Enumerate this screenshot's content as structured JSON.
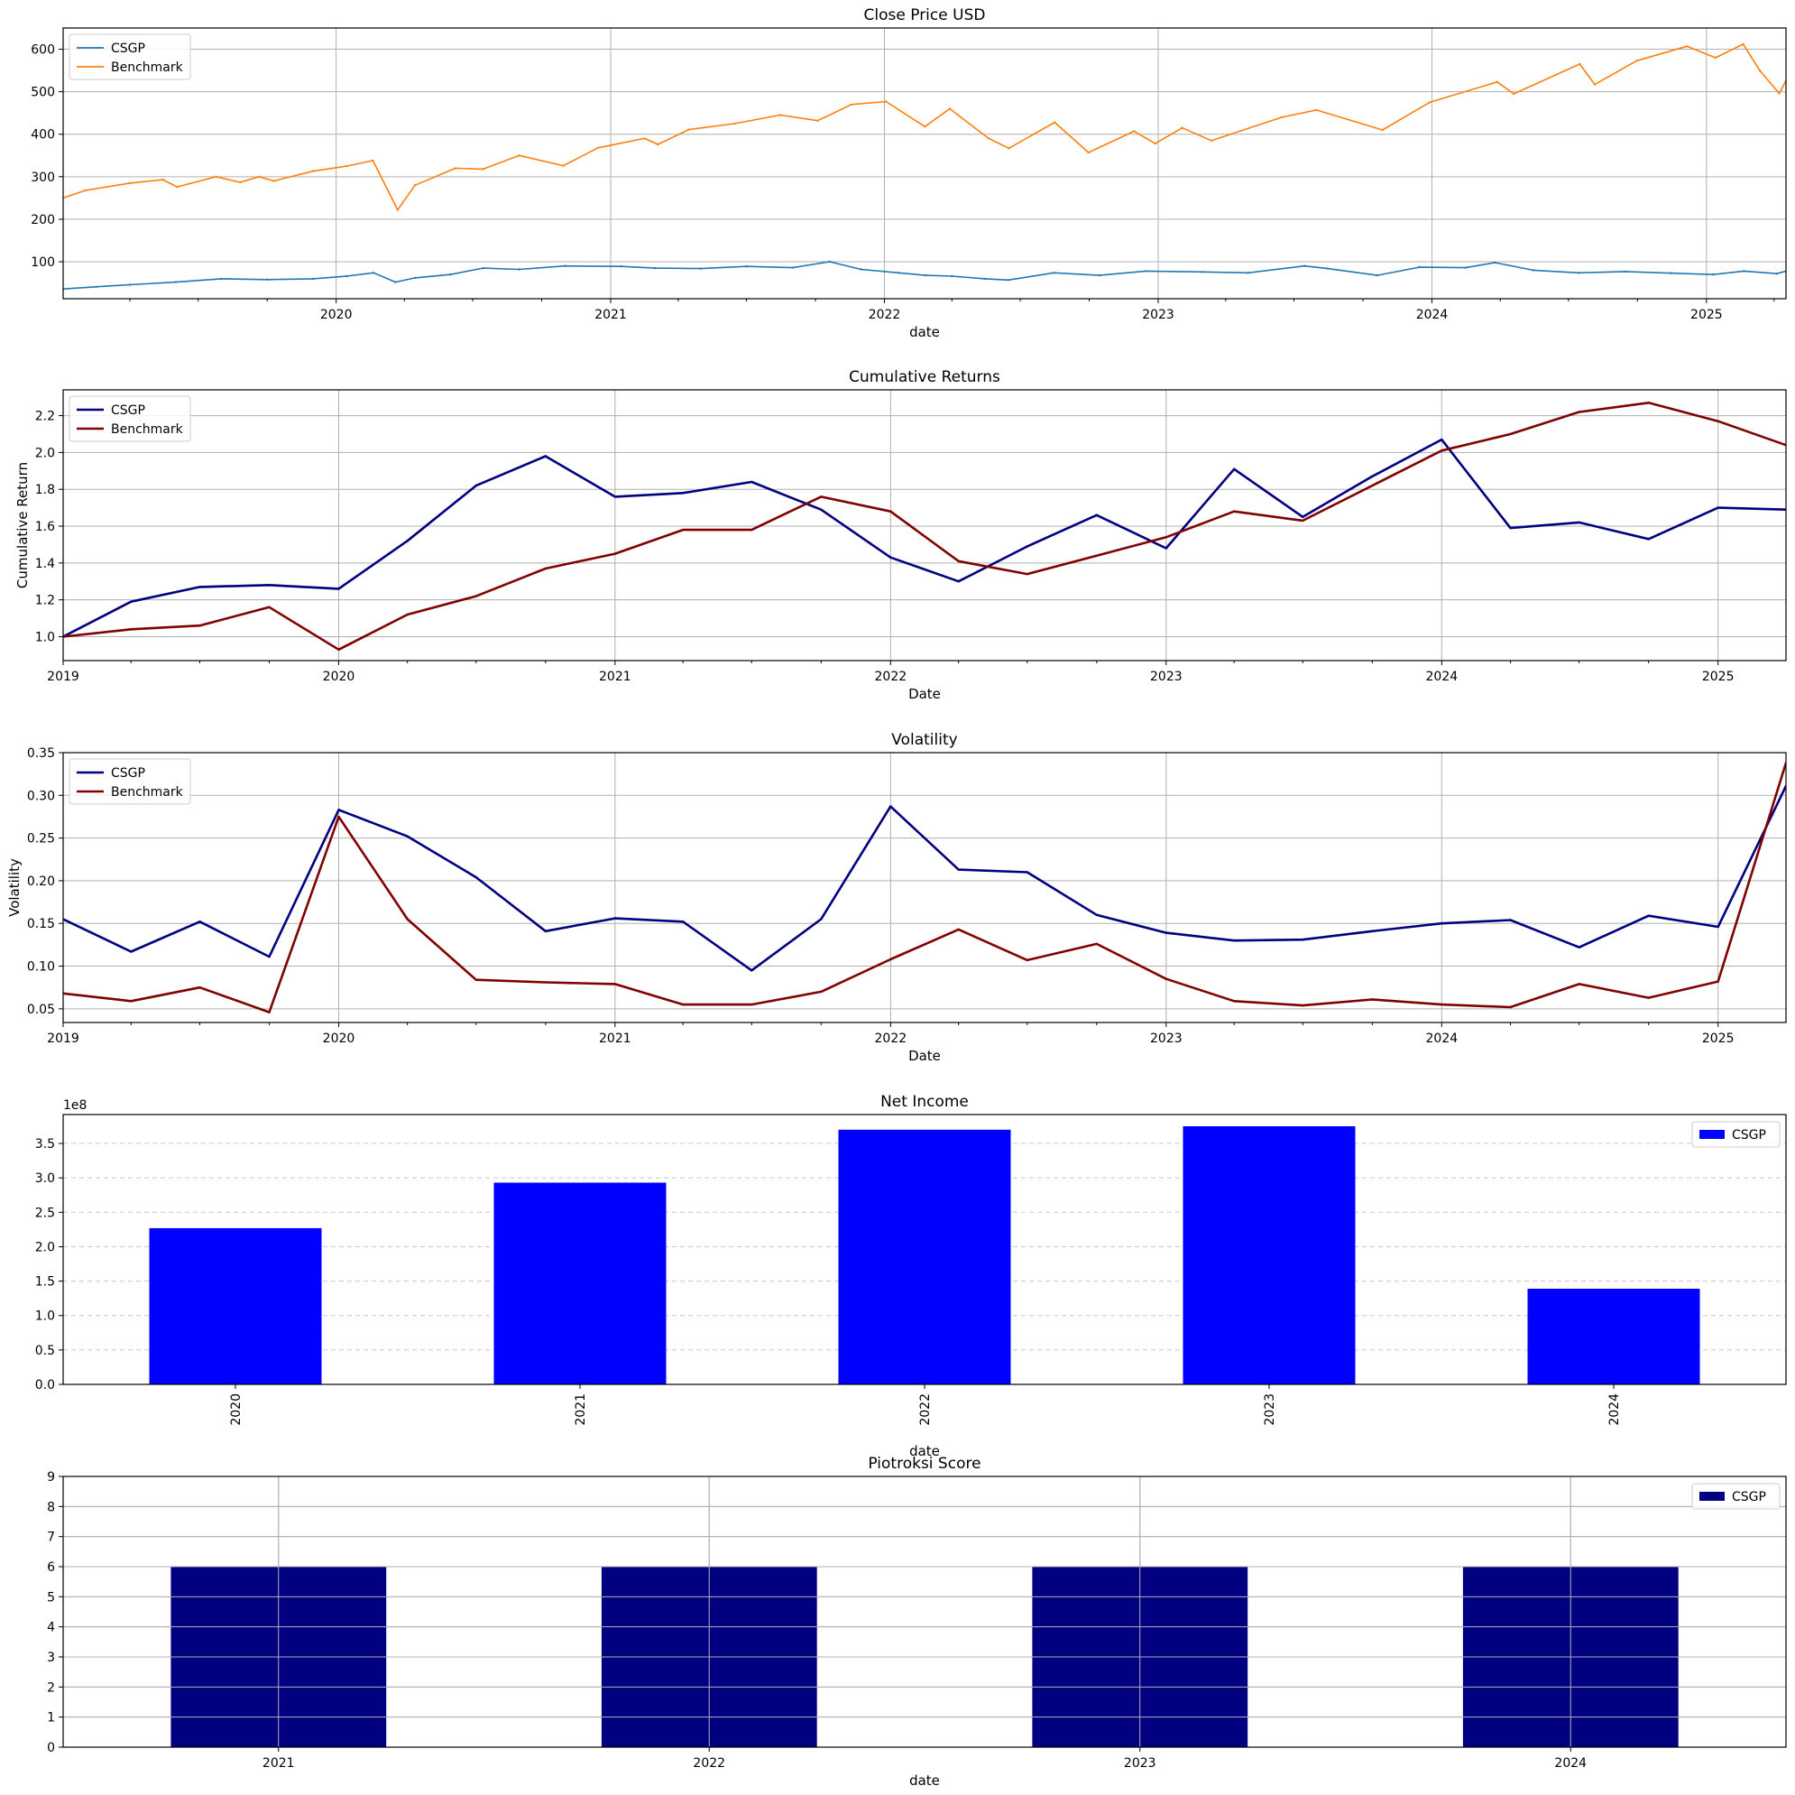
{
  "colors": {
    "csgp_price": "#1f77b4",
    "benchmark_price": "#ff7f0e",
    "csgp_line": "#000080",
    "benchmark_line": "#800000",
    "net_income_bar": "#0000ff",
    "piotroski_bar": "#000080",
    "grid": "#b0b0b0"
  },
  "chart_data": [
    {
      "type": "line",
      "title": "Close Price USD",
      "xlabel": "date",
      "ylabel": "",
      "x_type": "date",
      "xlim": [
        "2019-01-02",
        "2025-04-17"
      ],
      "ylim": [
        13,
        650
      ],
      "x_ticks": [
        "2020-01-01",
        "2021-01-01",
        "2022-01-01",
        "2023-01-01",
        "2024-01-01",
        "2025-01-01"
      ],
      "x_tick_labels": [
        "2020",
        "2021",
        "2022",
        "2023",
        "2024",
        "2025"
      ],
      "y_ticks": [
        100,
        200,
        300,
        400,
        500,
        600
      ],
      "y_tick_labels": [
        "100",
        "200",
        "300",
        "400",
        "500",
        "600"
      ],
      "grid": "both",
      "legend": "top-left",
      "series": [
        {
          "name": "CSGP",
          "points": [
            [
              "2019-01-02",
              36
            ],
            [
              "2019-02-15",
              41
            ],
            [
              "2019-04-01",
              46
            ],
            [
              "2019-06-01",
              52
            ],
            [
              "2019-08-01",
              60
            ],
            [
              "2019-10-01",
              58
            ],
            [
              "2019-12-01",
              60
            ],
            [
              "2020-01-15",
              66
            ],
            [
              "2020-02-20",
              74
            ],
            [
              "2020-03-20",
              52
            ],
            [
              "2020-04-15",
              62
            ],
            [
              "2020-06-01",
              70
            ],
            [
              "2020-07-15",
              85
            ],
            [
              "2020-09-01",
              82
            ],
            [
              "2020-11-01",
              90
            ],
            [
              "2021-01-15",
              89
            ],
            [
              "2021-03-01",
              85
            ],
            [
              "2021-05-01",
              84
            ],
            [
              "2021-07-01",
              89
            ],
            [
              "2021-09-01",
              86
            ],
            [
              "2021-10-20",
              100
            ],
            [
              "2021-12-01",
              82
            ],
            [
              "2022-01-20",
              74
            ],
            [
              "2022-02-25",
              68
            ],
            [
              "2022-04-01",
              66
            ],
            [
              "2022-05-15",
              60
            ],
            [
              "2022-06-15",
              57
            ],
            [
              "2022-08-15",
              74
            ],
            [
              "2022-10-15",
              68
            ],
            [
              "2022-12-15",
              78
            ],
            [
              "2023-03-01",
              76
            ],
            [
              "2023-05-01",
              74
            ],
            [
              "2023-07-15",
              90
            ],
            [
              "2023-08-15",
              84
            ],
            [
              "2023-10-20",
              68
            ],
            [
              "2023-12-15",
              87
            ],
            [
              "2024-02-15",
              86
            ],
            [
              "2024-03-25",
              98
            ],
            [
              "2024-05-15",
              80
            ],
            [
              "2024-07-15",
              74
            ],
            [
              "2024-09-15",
              77
            ],
            [
              "2024-11-15",
              73
            ],
            [
              "2025-01-10",
              70
            ],
            [
              "2025-02-20",
              78
            ],
            [
              "2025-04-05",
              72
            ],
            [
              "2025-04-17",
              78
            ]
          ]
        },
        {
          "name": "Benchmark",
          "points": [
            [
              "2019-01-02",
              250
            ],
            [
              "2019-02-01",
              268
            ],
            [
              "2019-04-01",
              285
            ],
            [
              "2019-05-15",
              293
            ],
            [
              "2019-06-03",
              276
            ],
            [
              "2019-07-25",
              300
            ],
            [
              "2019-08-26",
              287
            ],
            [
              "2019-09-20",
              300
            ],
            [
              "2019-10-10",
              290
            ],
            [
              "2019-12-01",
              313
            ],
            [
              "2020-01-15",
              325
            ],
            [
              "2020-02-19",
              338
            ],
            [
              "2020-03-23",
              222
            ],
            [
              "2020-04-15",
              280
            ],
            [
              "2020-06-08",
              320
            ],
            [
              "2020-07-15",
              318
            ],
            [
              "2020-09-01",
              350
            ],
            [
              "2020-10-30",
              326
            ],
            [
              "2020-12-15",
              368
            ],
            [
              "2021-02-15",
              390
            ],
            [
              "2021-03-05",
              376
            ],
            [
              "2021-04-15",
              411
            ],
            [
              "2021-06-15",
              425
            ],
            [
              "2021-08-15",
              445
            ],
            [
              "2021-10-04",
              432
            ],
            [
              "2021-11-18",
              470
            ],
            [
              "2022-01-03",
              477
            ],
            [
              "2022-02-24",
              418
            ],
            [
              "2022-03-29",
              460
            ],
            [
              "2022-05-20",
              390
            ],
            [
              "2022-06-16",
              367
            ],
            [
              "2022-08-16",
              428
            ],
            [
              "2022-09-30",
              357
            ],
            [
              "2022-11-30",
              407
            ],
            [
              "2022-12-28",
              378
            ],
            [
              "2023-02-02",
              415
            ],
            [
              "2023-03-13",
              385
            ],
            [
              "2023-06-15",
              440
            ],
            [
              "2023-07-31",
              457
            ],
            [
              "2023-10-27",
              410
            ],
            [
              "2023-12-29",
              475
            ],
            [
              "2024-03-28",
              523
            ],
            [
              "2024-04-19",
              495
            ],
            [
              "2024-07-16",
              565
            ],
            [
              "2024-08-05",
              517
            ],
            [
              "2024-09-30",
              573
            ],
            [
              "2024-12-06",
              607
            ],
            [
              "2025-01-13",
              580
            ],
            [
              "2025-02-19",
              612
            ],
            [
              "2025-03-13",
              550
            ],
            [
              "2025-04-08",
              496
            ],
            [
              "2025-04-17",
              526
            ]
          ]
        }
      ]
    },
    {
      "type": "line",
      "title": "Cumulative Returns",
      "xlabel": "Date",
      "ylabel": "Cumulative Return",
      "x_type": "date",
      "xlim": [
        "2019-01-01",
        "2025-04-01"
      ],
      "ylim": [
        0.87,
        2.34
      ],
      "x_ticks": [
        "2019-01-01",
        "2020-01-01",
        "2021-01-01",
        "2022-01-01",
        "2023-01-01",
        "2024-01-01",
        "2025-01-01"
      ],
      "x_tick_labels": [
        "2019",
        "2020",
        "2021",
        "2022",
        "2023",
        "2024",
        "2025"
      ],
      "y_ticks": [
        1.0,
        1.2,
        1.4,
        1.6,
        1.8,
        2.0,
        2.2
      ],
      "y_tick_labels": [
        "1.0",
        "1.2",
        "1.4",
        "1.6",
        "1.8",
        "2.0",
        "2.2"
      ],
      "grid": "both",
      "legend": "top-left",
      "x": [
        "2019-01-01",
        "2019-04-01",
        "2019-07-01",
        "2019-10-01",
        "2020-01-01",
        "2020-04-01",
        "2020-07-01",
        "2020-10-01",
        "2021-01-01",
        "2021-04-01",
        "2021-07-01",
        "2021-10-01",
        "2022-01-01",
        "2022-04-01",
        "2022-07-01",
        "2022-10-01",
        "2023-01-01",
        "2023-04-01",
        "2023-07-01",
        "2023-10-01",
        "2024-01-01",
        "2024-04-01",
        "2024-07-01",
        "2024-10-01",
        "2025-01-01",
        "2025-04-01"
      ],
      "series": [
        {
          "name": "CSGP",
          "values": [
            1.0,
            1.19,
            1.27,
            1.28,
            1.26,
            1.52,
            1.82,
            1.98,
            1.76,
            1.78,
            1.84,
            1.69,
            1.43,
            1.3,
            1.49,
            1.66,
            1.48,
            1.91,
            1.65,
            1.87,
            2.07,
            1.59,
            1.62,
            1.53,
            1.7,
            1.69
          ]
        },
        {
          "name": "Benchmark",
          "values": [
            1.0,
            1.04,
            1.06,
            1.16,
            0.93,
            1.12,
            1.22,
            1.37,
            1.45,
            1.58,
            1.58,
            1.76,
            1.68,
            1.41,
            1.34,
            1.44,
            1.54,
            1.68,
            1.63,
            1.82,
            2.01,
            2.1,
            2.22,
            2.27,
            2.17,
            2.04
          ]
        }
      ]
    },
    {
      "type": "line",
      "title": "Volatility",
      "xlabel": "Date",
      "ylabel": "Volatility",
      "x_type": "date",
      "xlim": [
        "2019-01-01",
        "2025-04-01"
      ],
      "ylim": [
        0.034,
        0.35
      ],
      "x_ticks": [
        "2019-01-01",
        "2020-01-01",
        "2021-01-01",
        "2022-01-01",
        "2023-01-01",
        "2024-01-01",
        "2025-01-01"
      ],
      "x_tick_labels": [
        "2019",
        "2020",
        "2021",
        "2022",
        "2023",
        "2024",
        "2025"
      ],
      "y_ticks": [
        0.05,
        0.1,
        0.15,
        0.2,
        0.25,
        0.3,
        0.35
      ],
      "y_tick_labels": [
        "0.05",
        "0.10",
        "0.15",
        "0.20",
        "0.25",
        "0.30",
        "0.35"
      ],
      "grid": "both",
      "legend": "top-left",
      "x": [
        "2019-01-01",
        "2019-04-01",
        "2019-07-01",
        "2019-10-01",
        "2020-01-01",
        "2020-04-01",
        "2020-07-01",
        "2020-10-01",
        "2021-01-01",
        "2021-04-01",
        "2021-07-01",
        "2021-10-01",
        "2022-01-01",
        "2022-04-01",
        "2022-07-01",
        "2022-10-01",
        "2023-01-01",
        "2023-04-01",
        "2023-07-01",
        "2023-10-01",
        "2024-01-01",
        "2024-04-01",
        "2024-07-01",
        "2024-10-01",
        "2025-01-01",
        "2025-04-01"
      ],
      "series": [
        {
          "name": "CSGP",
          "values": [
            0.155,
            0.117,
            0.152,
            0.111,
            0.283,
            0.252,
            0.204,
            0.141,
            0.156,
            0.152,
            0.095,
            0.155,
            0.287,
            0.213,
            0.21,
            0.16,
            0.139,
            0.13,
            0.131,
            0.141,
            0.15,
            0.154,
            0.122,
            0.159,
            0.146,
            0.311
          ]
        },
        {
          "name": "Benchmark",
          "values": [
            0.068,
            0.059,
            0.075,
            0.046,
            0.275,
            0.155,
            0.084,
            0.081,
            0.079,
            0.055,
            0.055,
            0.07,
            0.108,
            0.143,
            0.107,
            0.126,
            0.085,
            0.059,
            0.054,
            0.061,
            0.055,
            0.052,
            0.079,
            0.063,
            0.082,
            0.338
          ]
        }
      ]
    },
    {
      "type": "bar",
      "title": "Net Income",
      "xlabel": "date",
      "ylabel": "",
      "offset_text": "1e8",
      "categories": [
        "2020",
        "2021",
        "2022",
        "2023",
        "2024"
      ],
      "ylim": [
        0,
        3.92
      ],
      "y_ticks": [
        0.0,
        0.5,
        1.0,
        1.5,
        2.0,
        2.5,
        3.0,
        3.5
      ],
      "y_tick_labels": [
        "0.0",
        "0.5",
        "1.0",
        "1.5",
        "2.0",
        "2.5",
        "3.0",
        "3.5"
      ],
      "grid": "y-dashed",
      "legend": "top-right",
      "x_tick_rotation": "vertical",
      "series": [
        {
          "name": "CSGP",
          "values": [
            2.27,
            2.93,
            3.7,
            3.75,
            1.39
          ]
        }
      ]
    },
    {
      "type": "bar",
      "title": "Piotroksi Score",
      "xlabel": "date",
      "ylabel": "",
      "categories": [
        "2021",
        "2022",
        "2023",
        "2024"
      ],
      "ylim": [
        0,
        9
      ],
      "y_ticks": [
        0,
        1,
        2,
        3,
        4,
        5,
        6,
        7,
        8,
        9
      ],
      "y_tick_labels": [
        "0",
        "1",
        "2",
        "3",
        "4",
        "5",
        "6",
        "7",
        "8",
        "9"
      ],
      "grid": "both",
      "legend": "top-right",
      "series": [
        {
          "name": "CSGP",
          "values": [
            6,
            6,
            6,
            6
          ]
        }
      ]
    }
  ]
}
